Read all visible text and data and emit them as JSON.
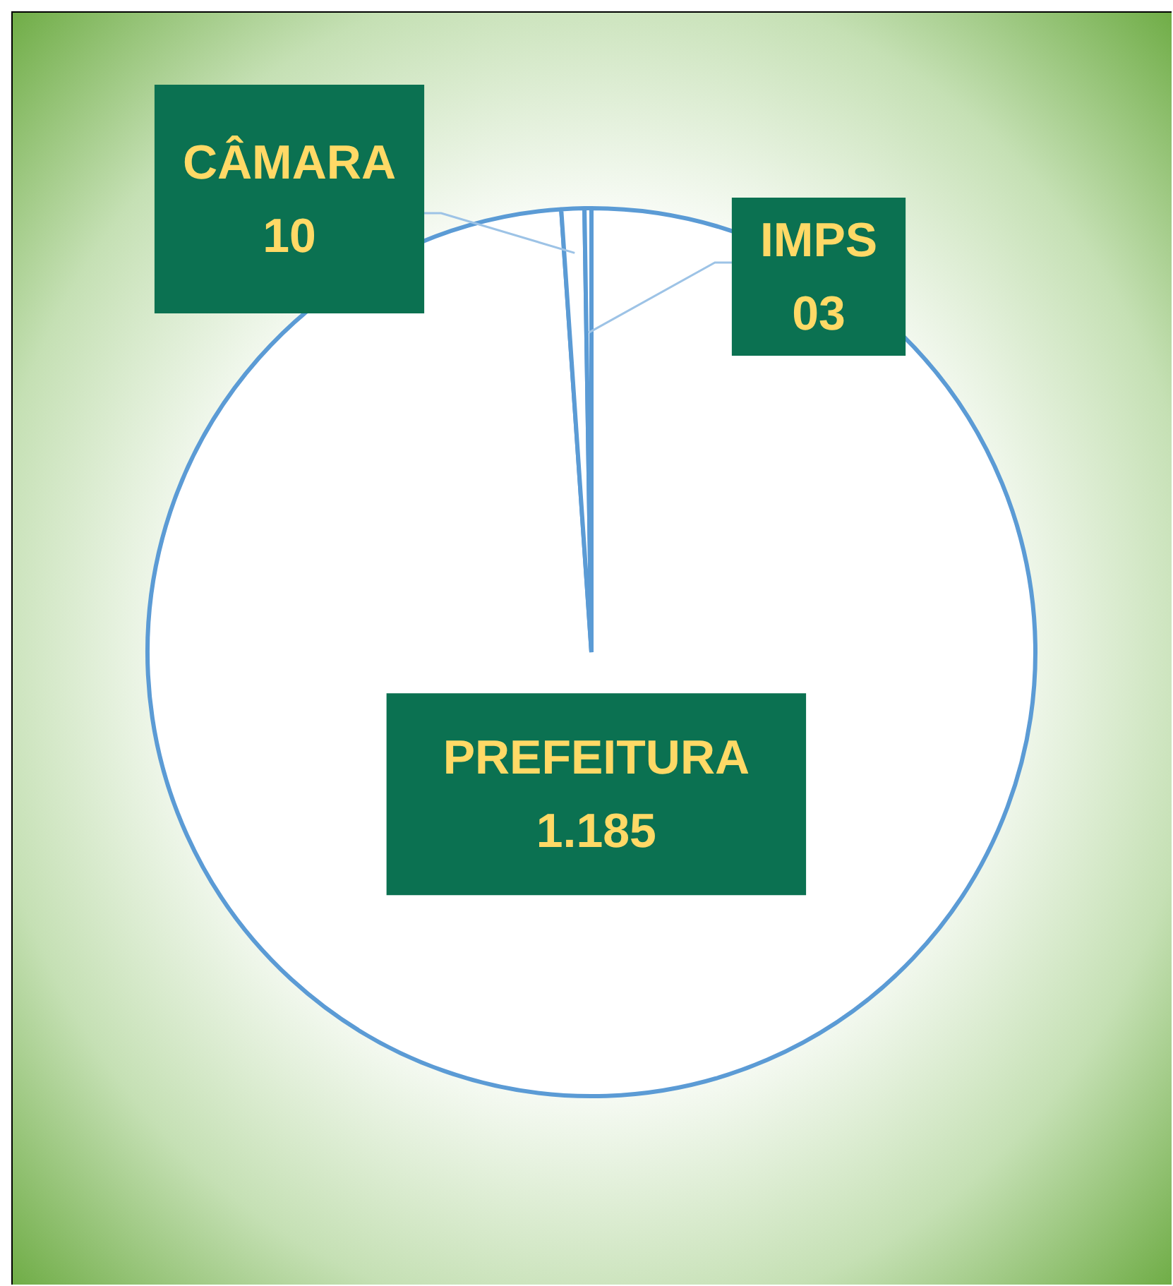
{
  "chart_data": {
    "type": "pie",
    "categories": [
      "PREFEITURA",
      "CÂMARA",
      "IMPS"
    ],
    "values": [
      1185,
      10,
      3
    ],
    "value_labels": [
      "1.185",
      "10",
      "03"
    ],
    "colors": [
      "#ffffff",
      "#ffffff",
      "#ffffff"
    ],
    "legend": false
  }
}
